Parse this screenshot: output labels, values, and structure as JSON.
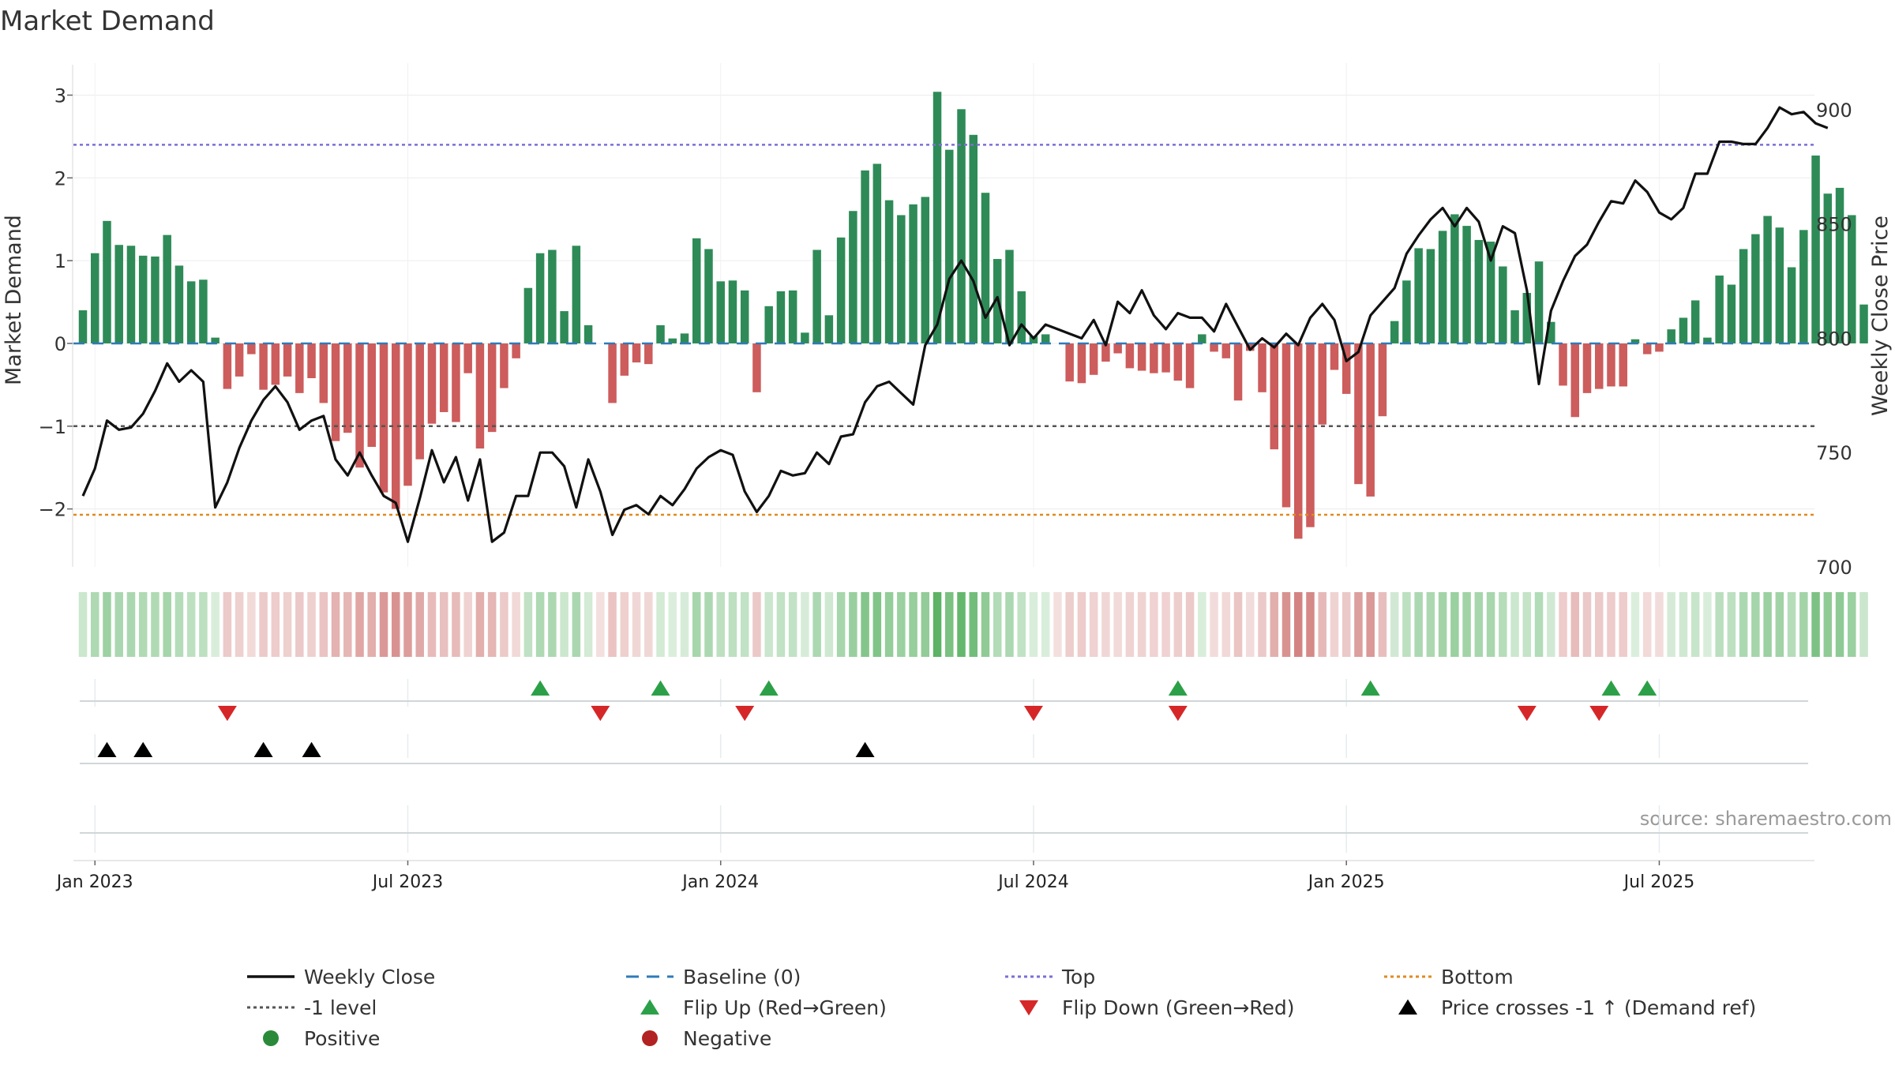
{
  "chart_data": {
    "type": "bar",
    "title": "Market Demand",
    "ylabel": "Market Demand",
    "y2label": "Weekly Close Price",
    "source": "source: sharemaestro.com",
    "ylim": [
      -2.7,
      3.1
    ],
    "y2lim": [
      700,
      910
    ],
    "yticks": [
      {
        "v": 3,
        "label": "3"
      },
      {
        "v": 2,
        "label": "2"
      },
      {
        "v": 1,
        "label": "1"
      },
      {
        "v": 0,
        "label": "0"
      },
      {
        "v": -1,
        "label": "−1"
      },
      {
        "v": -2,
        "label": "−2"
      }
    ],
    "y2ticks": [
      {
        "v": 900,
        "label": "900"
      },
      {
        "v": 850,
        "label": "850"
      },
      {
        "v": 800,
        "label": "800"
      },
      {
        "v": 750,
        "label": "750"
      },
      {
        "v": 700,
        "label": "700"
      }
    ],
    "xticks": [
      {
        "i": 1,
        "label": "Jan 2023"
      },
      {
        "i": 27,
        "label": "Jul 2023"
      },
      {
        "i": 53,
        "label": "Jan 2024"
      },
      {
        "i": 79,
        "label": "Jul 2024"
      },
      {
        "i": 105,
        "label": "Jan 2025"
      },
      {
        "i": 131,
        "label": "Jul 2025"
      }
    ],
    "levels": {
      "top": 2.4,
      "bottom": -2.07,
      "minus_one": -1.0,
      "baseline": 0
    },
    "demand": [
      0.4,
      1.09,
      1.48,
      1.19,
      1.18,
      1.06,
      1.05,
      1.31,
      0.94,
      0.75,
      0.77,
      0.07,
      -0.55,
      -0.4,
      -0.13,
      -0.56,
      -0.5,
      -0.4,
      -0.6,
      -0.42,
      -0.72,
      -1.18,
      -1.08,
      -1.5,
      -1.25,
      -1.8,
      -2.0,
      -1.72,
      -1.4,
      -0.97,
      -0.83,
      -0.95,
      -0.36,
      -1.27,
      -1.07,
      -0.54,
      -0.18,
      0.67,
      1.09,
      1.13,
      0.39,
      1.18,
      0.22,
      0.0,
      -0.72,
      -0.39,
      -0.23,
      -0.25,
      0.22,
      0.06,
      0.12,
      1.27,
      1.14,
      0.75,
      0.76,
      0.64,
      -0.59,
      0.45,
      0.63,
      0.64,
      0.13,
      1.13,
      0.34,
      1.28,
      1.6,
      2.09,
      2.17,
      1.73,
      1.55,
      1.68,
      1.77,
      3.04,
      2.34,
      2.83,
      2.52,
      1.82,
      1.02,
      1.13,
      0.63,
      0.09,
      0.11,
      0.0,
      -0.46,
      -0.48,
      -0.38,
      -0.22,
      -0.12,
      -0.3,
      -0.33,
      -0.36,
      -0.35,
      -0.45,
      -0.54,
      0.11,
      -0.1,
      -0.18,
      -0.69,
      -0.09,
      -0.59,
      -1.28,
      -1.98,
      -2.36,
      -2.22,
      -0.98,
      -0.32,
      -0.61,
      -1.7,
      -1.85,
      -0.88,
      0.27,
      0.76,
      1.15,
      1.14,
      1.36,
      1.56,
      1.42,
      1.25,
      1.23,
      0.93,
      0.4,
      0.61,
      0.99,
      0.26,
      -0.51,
      -0.89,
      -0.6,
      -0.55,
      -0.52,
      -0.52,
      0.05,
      -0.13,
      -0.1,
      0.17,
      0.31,
      0.52,
      0.07,
      0.82,
      0.71,
      1.14,
      1.32,
      1.54,
      1.4,
      0.92,
      1.37,
      2.27,
      1.81,
      1.88,
      1.55,
      0.47
    ],
    "close": [
      731,
      743,
      764,
      760,
      761,
      767,
      777,
      789,
      781,
      786,
      781,
      726,
      737,
      752,
      764,
      773,
      779,
      772,
      760,
      764,
      766,
      747,
      740,
      750,
      740,
      731,
      728,
      711,
      730,
      751,
      737,
      748,
      729,
      747,
      711,
      715,
      731,
      731,
      750,
      750,
      744,
      726,
      747,
      733,
      714,
      725,
      727,
      723,
      731,
      727,
      734,
      743,
      748,
      751,
      749,
      733,
      724,
      731,
      742,
      740,
      741,
      750,
      745,
      757,
      758,
      772,
      779,
      781,
      776,
      771,
      797,
      806,
      826,
      834,
      825,
      809,
      818,
      797,
      806,
      800,
      806,
      804,
      802,
      800,
      808,
      797,
      816,
      811,
      821,
      810,
      804,
      811,
      809,
      809,
      803,
      815,
      805,
      795,
      800,
      796,
      802,
      797,
      809,
      815,
      808,
      790,
      794,
      810,
      816,
      822,
      837,
      845,
      852,
      857,
      849,
      857,
      851,
      834,
      849,
      846,
      821,
      780,
      812,
      825,
      836,
      841,
      851,
      860,
      859,
      869,
      864,
      855,
      852,
      857,
      872,
      872,
      886,
      886,
      885,
      885,
      892,
      901,
      898,
      899,
      894,
      892
    ],
    "flip_up": [
      38,
      48,
      57,
      91,
      107,
      127,
      130
    ],
    "flip_down": [
      12,
      43,
      55,
      79,
      91,
      120,
      126
    ],
    "price_cross": [
      2,
      5,
      15,
      19,
      65
    ],
    "legend": [
      {
        "key": "line-black",
        "label": "Weekly Close",
        "color": "#111111"
      },
      {
        "key": "dash-blue",
        "label": "Baseline (0)",
        "color": "#2f7ab8"
      },
      {
        "key": "dot-purple",
        "label": "Top",
        "color": "#7b6fd6"
      },
      {
        "key": "dot-orange",
        "label": "Bottom",
        "color": "#e08a1e"
      },
      {
        "key": "dot-gray",
        "label": "-1 level",
        "color": "#555555"
      },
      {
        "key": "tri-up-green",
        "label": "Flip Up (Red→Green)",
        "color": "#2ca048"
      },
      {
        "key": "tri-down-red",
        "label": "Flip Down (Green→Red)",
        "color": "#d62728"
      },
      {
        "key": "tri-up-black",
        "label": "Price crosses -1 ↑ (Demand ref)",
        "color": "#000000"
      },
      {
        "key": "circle-green",
        "label": "Positive",
        "color": "#2a8a3a"
      },
      {
        "key": "circle-red",
        "label": "Negative",
        "color": "#b22222"
      }
    ],
    "colors": {
      "positive": "#2e8b57",
      "negative": "#cd5c5c",
      "strip_pos": "#3fa54a",
      "strip_neg": "#c0504d"
    }
  }
}
